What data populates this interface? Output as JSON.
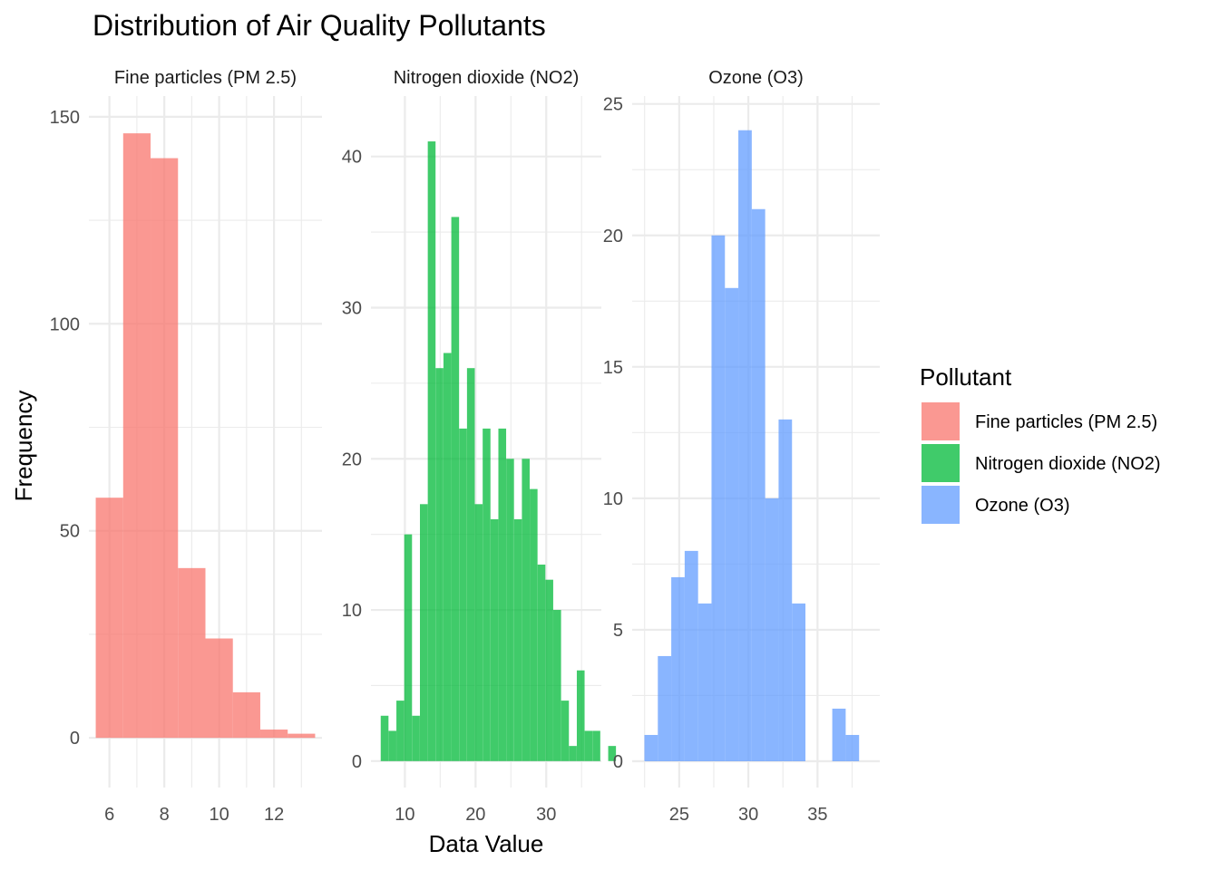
{
  "chart_data": {
    "type": "bar",
    "title": "Distribution of Air Quality Pollutants",
    "xlabel": "Data Value",
    "ylabel": "Frequency",
    "legend": {
      "title": "Pollutant",
      "position": "right",
      "entries": [
        {
          "label": "Fine particles (PM 2.5)",
          "color": "#F8766D"
        },
        {
          "label": "Nitrogen dioxide (NO2)",
          "color": "#00BA38"
        },
        {
          "label": "Ozone (O3)",
          "color": "#619CFF"
        }
      ]
    },
    "grid": true,
    "facets": [
      {
        "name": "Fine particles (PM 2.5)",
        "color": "#F8766D",
        "xlim": [
          5.25,
          13.75
        ],
        "ylim": [
          -12,
          155
        ],
        "xticks": [
          6,
          8,
          10,
          12
        ],
        "yticks": [
          0,
          50,
          100,
          150
        ],
        "binwidth": 1,
        "bins": [
          {
            "x": 6,
            "count": 58
          },
          {
            "x": 7,
            "count": 146
          },
          {
            "x": 8,
            "count": 140
          },
          {
            "x": 9,
            "count": 41
          },
          {
            "x": 10,
            "count": 24
          },
          {
            "x": 11,
            "count": 11
          },
          {
            "x": 12,
            "count": 2
          },
          {
            "x": 13,
            "count": 1
          }
        ]
      },
      {
        "name": "Nitrogen dioxide (NO2)",
        "color": "#00BA38",
        "xlim": [
          5.2,
          37.8
        ],
        "ylim": [
          -1.75,
          44
        ],
        "xticks": [
          10,
          20,
          30
        ],
        "yticks": [
          0,
          10,
          20,
          30,
          40
        ],
        "binwidth": 1.1,
        "bins": [
          {
            "x": 7.13,
            "count": 3
          },
          {
            "x": 8.24,
            "count": 2
          },
          {
            "x": 9.35,
            "count": 4
          },
          {
            "x": 10.46,
            "count": 15
          },
          {
            "x": 11.57,
            "count": 3
          },
          {
            "x": 12.68,
            "count": 17
          },
          {
            "x": 13.79,
            "count": 41
          },
          {
            "x": 14.9,
            "count": 26
          },
          {
            "x": 16.01,
            "count": 27
          },
          {
            "x": 17.12,
            "count": 36
          },
          {
            "x": 18.23,
            "count": 22
          },
          {
            "x": 19.34,
            "count": 26
          },
          {
            "x": 20.45,
            "count": 17
          },
          {
            "x": 21.56,
            "count": 22
          },
          {
            "x": 22.67,
            "count": 16
          },
          {
            "x": 23.78,
            "count": 22
          },
          {
            "x": 24.89,
            "count": 20
          },
          {
            "x": 26.0,
            "count": 16
          },
          {
            "x": 27.11,
            "count": 20
          },
          {
            "x": 28.22,
            "count": 18
          },
          {
            "x": 29.33,
            "count": 13
          },
          {
            "x": 30.44,
            "count": 12
          },
          {
            "x": 31.55,
            "count": 10
          },
          {
            "x": 32.66,
            "count": 4
          },
          {
            "x": 33.77,
            "count": 1
          },
          {
            "x": 34.88,
            "count": 6
          },
          {
            "x": 35.99,
            "count": 2
          },
          {
            "x": 37.1,
            "count": 2
          },
          {
            "x": 38.21,
            "count": 0
          },
          {
            "x": 39.32,
            "count": 1
          }
        ]
      },
      {
        "name": "Ozone (O3)",
        "color": "#619CFF",
        "xlim": [
          21.6,
          39.5
        ],
        "ylim": [
          -1,
          25.3
        ],
        "xticks": [
          25,
          30,
          35
        ],
        "yticks": [
          0,
          5,
          10,
          15,
          20,
          25
        ],
        "binwidth": 0.97,
        "bins": [
          {
            "x": 22.97,
            "count": 1
          },
          {
            "x": 23.94,
            "count": 4
          },
          {
            "x": 24.91,
            "count": 7
          },
          {
            "x": 25.88,
            "count": 8
          },
          {
            "x": 26.85,
            "count": 6
          },
          {
            "x": 27.82,
            "count": 20
          },
          {
            "x": 28.79,
            "count": 18
          },
          {
            "x": 29.76,
            "count": 24
          },
          {
            "x": 30.73,
            "count": 21
          },
          {
            "x": 31.7,
            "count": 10
          },
          {
            "x": 32.67,
            "count": 13
          },
          {
            "x": 33.64,
            "count": 6
          },
          {
            "x": 34.61,
            "count": 0
          },
          {
            "x": 35.58,
            "count": 0
          },
          {
            "x": 36.55,
            "count": 2
          },
          {
            "x": 37.52,
            "count": 1
          }
        ]
      }
    ]
  }
}
